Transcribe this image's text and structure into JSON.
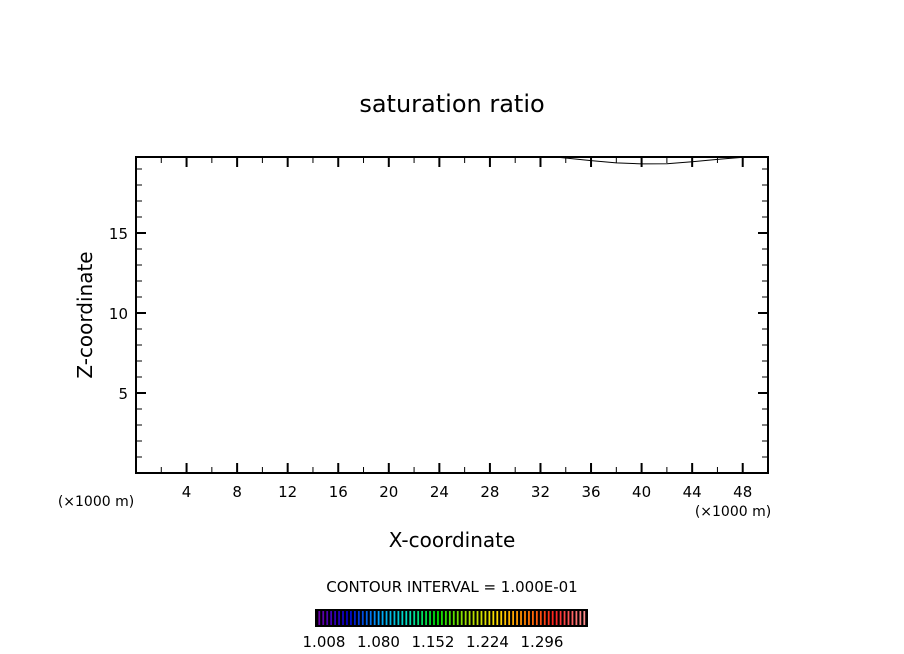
{
  "chart_data": {
    "type": "contour",
    "title": "saturation ratio",
    "xlabel": "X-coordinate",
    "ylabel": "Z-coordinate",
    "x_unit_left": "(×1000 m)",
    "x_unit_right": "(×1000 m)",
    "xlim": [
      0,
      50
    ],
    "ylim": [
      0,
      19.75
    ],
    "xticks": [
      4,
      8,
      12,
      16,
      20,
      24,
      28,
      32,
      36,
      40,
      44,
      48
    ],
    "yticks": [
      5,
      10,
      15
    ],
    "x_minor_step": 2,
    "y_minor_step": 1,
    "grid": false,
    "contours": [
      {
        "points": [
          [
            33.2,
            19.75
          ],
          [
            36,
            19.52
          ],
          [
            38,
            19.38
          ],
          [
            40,
            19.32
          ],
          [
            42,
            19.33
          ],
          [
            44,
            19.45
          ],
          [
            46,
            19.6
          ],
          [
            48.3,
            19.75
          ]
        ]
      }
    ],
    "contour_interval_label": "CONTOUR INTERVAL = 1.000E-01",
    "colorbar": {
      "labels": [
        "1.008",
        "1.080",
        "1.152",
        "1.224",
        "1.296"
      ],
      "colors": [
        "#6a00a8",
        "#0000c8",
        "#00a0ff",
        "#00e0c0",
        "#00e000",
        "#a0e000",
        "#ffe000",
        "#ff8000",
        "#ff2020",
        "#ff9090"
      ]
    },
    "line_color": "#000000"
  }
}
